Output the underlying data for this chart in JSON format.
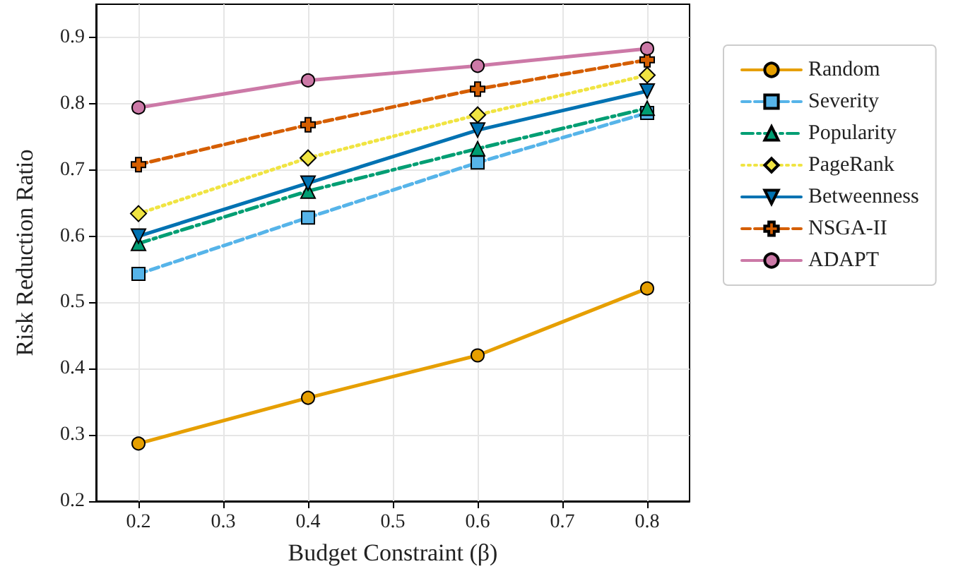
{
  "chart_data": {
    "type": "line",
    "xlabel": "Budget Constraint (β)",
    "ylabel": "Risk Reduction Ratio",
    "x": [
      0.2,
      0.4,
      0.6,
      0.8
    ],
    "xlim": [
      0.15,
      0.85
    ],
    "xticks": [
      0.2,
      0.3,
      0.4,
      0.5,
      0.6,
      0.7,
      0.8
    ],
    "ylim": [
      0.2,
      0.95
    ],
    "yticks": [
      0.2,
      0.3,
      0.4,
      0.5,
      0.6,
      0.7,
      0.8,
      0.9
    ],
    "grid": true,
    "legend": "right",
    "series": [
      {
        "name": "Random",
        "color": "#e69f00",
        "marker": "circle",
        "line_style": "solid",
        "values": [
          0.287,
          0.356,
          0.42,
          0.521
        ]
      },
      {
        "name": "Severity",
        "color": "#56b4e9",
        "marker": "square",
        "line_style": "dashed",
        "values": [
          0.543,
          0.628,
          0.711,
          0.786
        ]
      },
      {
        "name": "Popularity",
        "color": "#009e73",
        "marker": "triangle",
        "line_style": "dashdot",
        "values": [
          0.589,
          0.668,
          0.732,
          0.793
        ]
      },
      {
        "name": "PageRank",
        "color": "#f0e442",
        "marker": "diamond",
        "line_style": "dotted",
        "values": [
          0.634,
          0.718,
          0.783,
          0.843
        ]
      },
      {
        "name": "Betweenness",
        "color": "#0072b2",
        "marker": "triangle-down",
        "line_style": "solid",
        "values": [
          0.6,
          0.68,
          0.76,
          0.819
        ]
      },
      {
        "name": "NSGA-II",
        "color": "#d55e00",
        "marker": "cross",
        "line_style": "dashed",
        "values": [
          0.708,
          0.768,
          0.822,
          0.866
        ]
      },
      {
        "name": "ADAPT",
        "color": "#cc79a7",
        "marker": "circle",
        "line_style": "solid",
        "values": [
          0.794,
          0.835,
          0.857,
          0.883
        ]
      }
    ]
  }
}
